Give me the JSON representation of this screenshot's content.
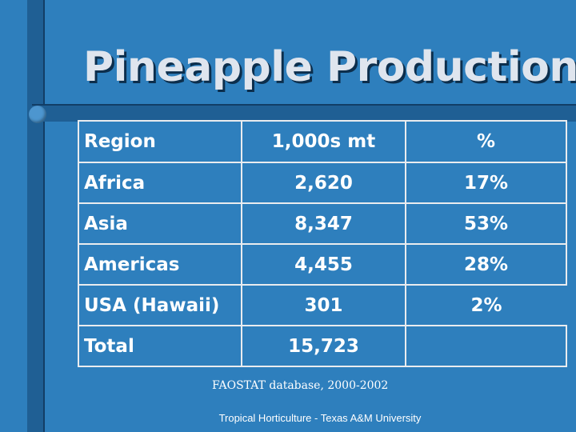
{
  "slide": {
    "title": "Pineapple Production",
    "source": "FAOSTAT database, 2000-2002",
    "footer": "Tropical Horticulture - Texas A&M University"
  },
  "table": {
    "headers": [
      "Region",
      "1,000s mt",
      "%"
    ],
    "rows": [
      {
        "region": "Africa",
        "amount": "2,620",
        "percent": "17%"
      },
      {
        "region": "Asia",
        "amount": "8,347",
        "percent": "53%"
      },
      {
        "region": "Americas",
        "amount": "4,455",
        "percent": "28%"
      },
      {
        "region": "USA (Hawaii)",
        "amount": "301",
        "percent": "2%"
      },
      {
        "region": "Total",
        "amount": "15,723",
        "percent": ""
      }
    ]
  },
  "colors": {
    "background": "#2e7fbd",
    "bar": "#1f5f94",
    "text": "#ffffff",
    "title": "#dfe5ee"
  }
}
